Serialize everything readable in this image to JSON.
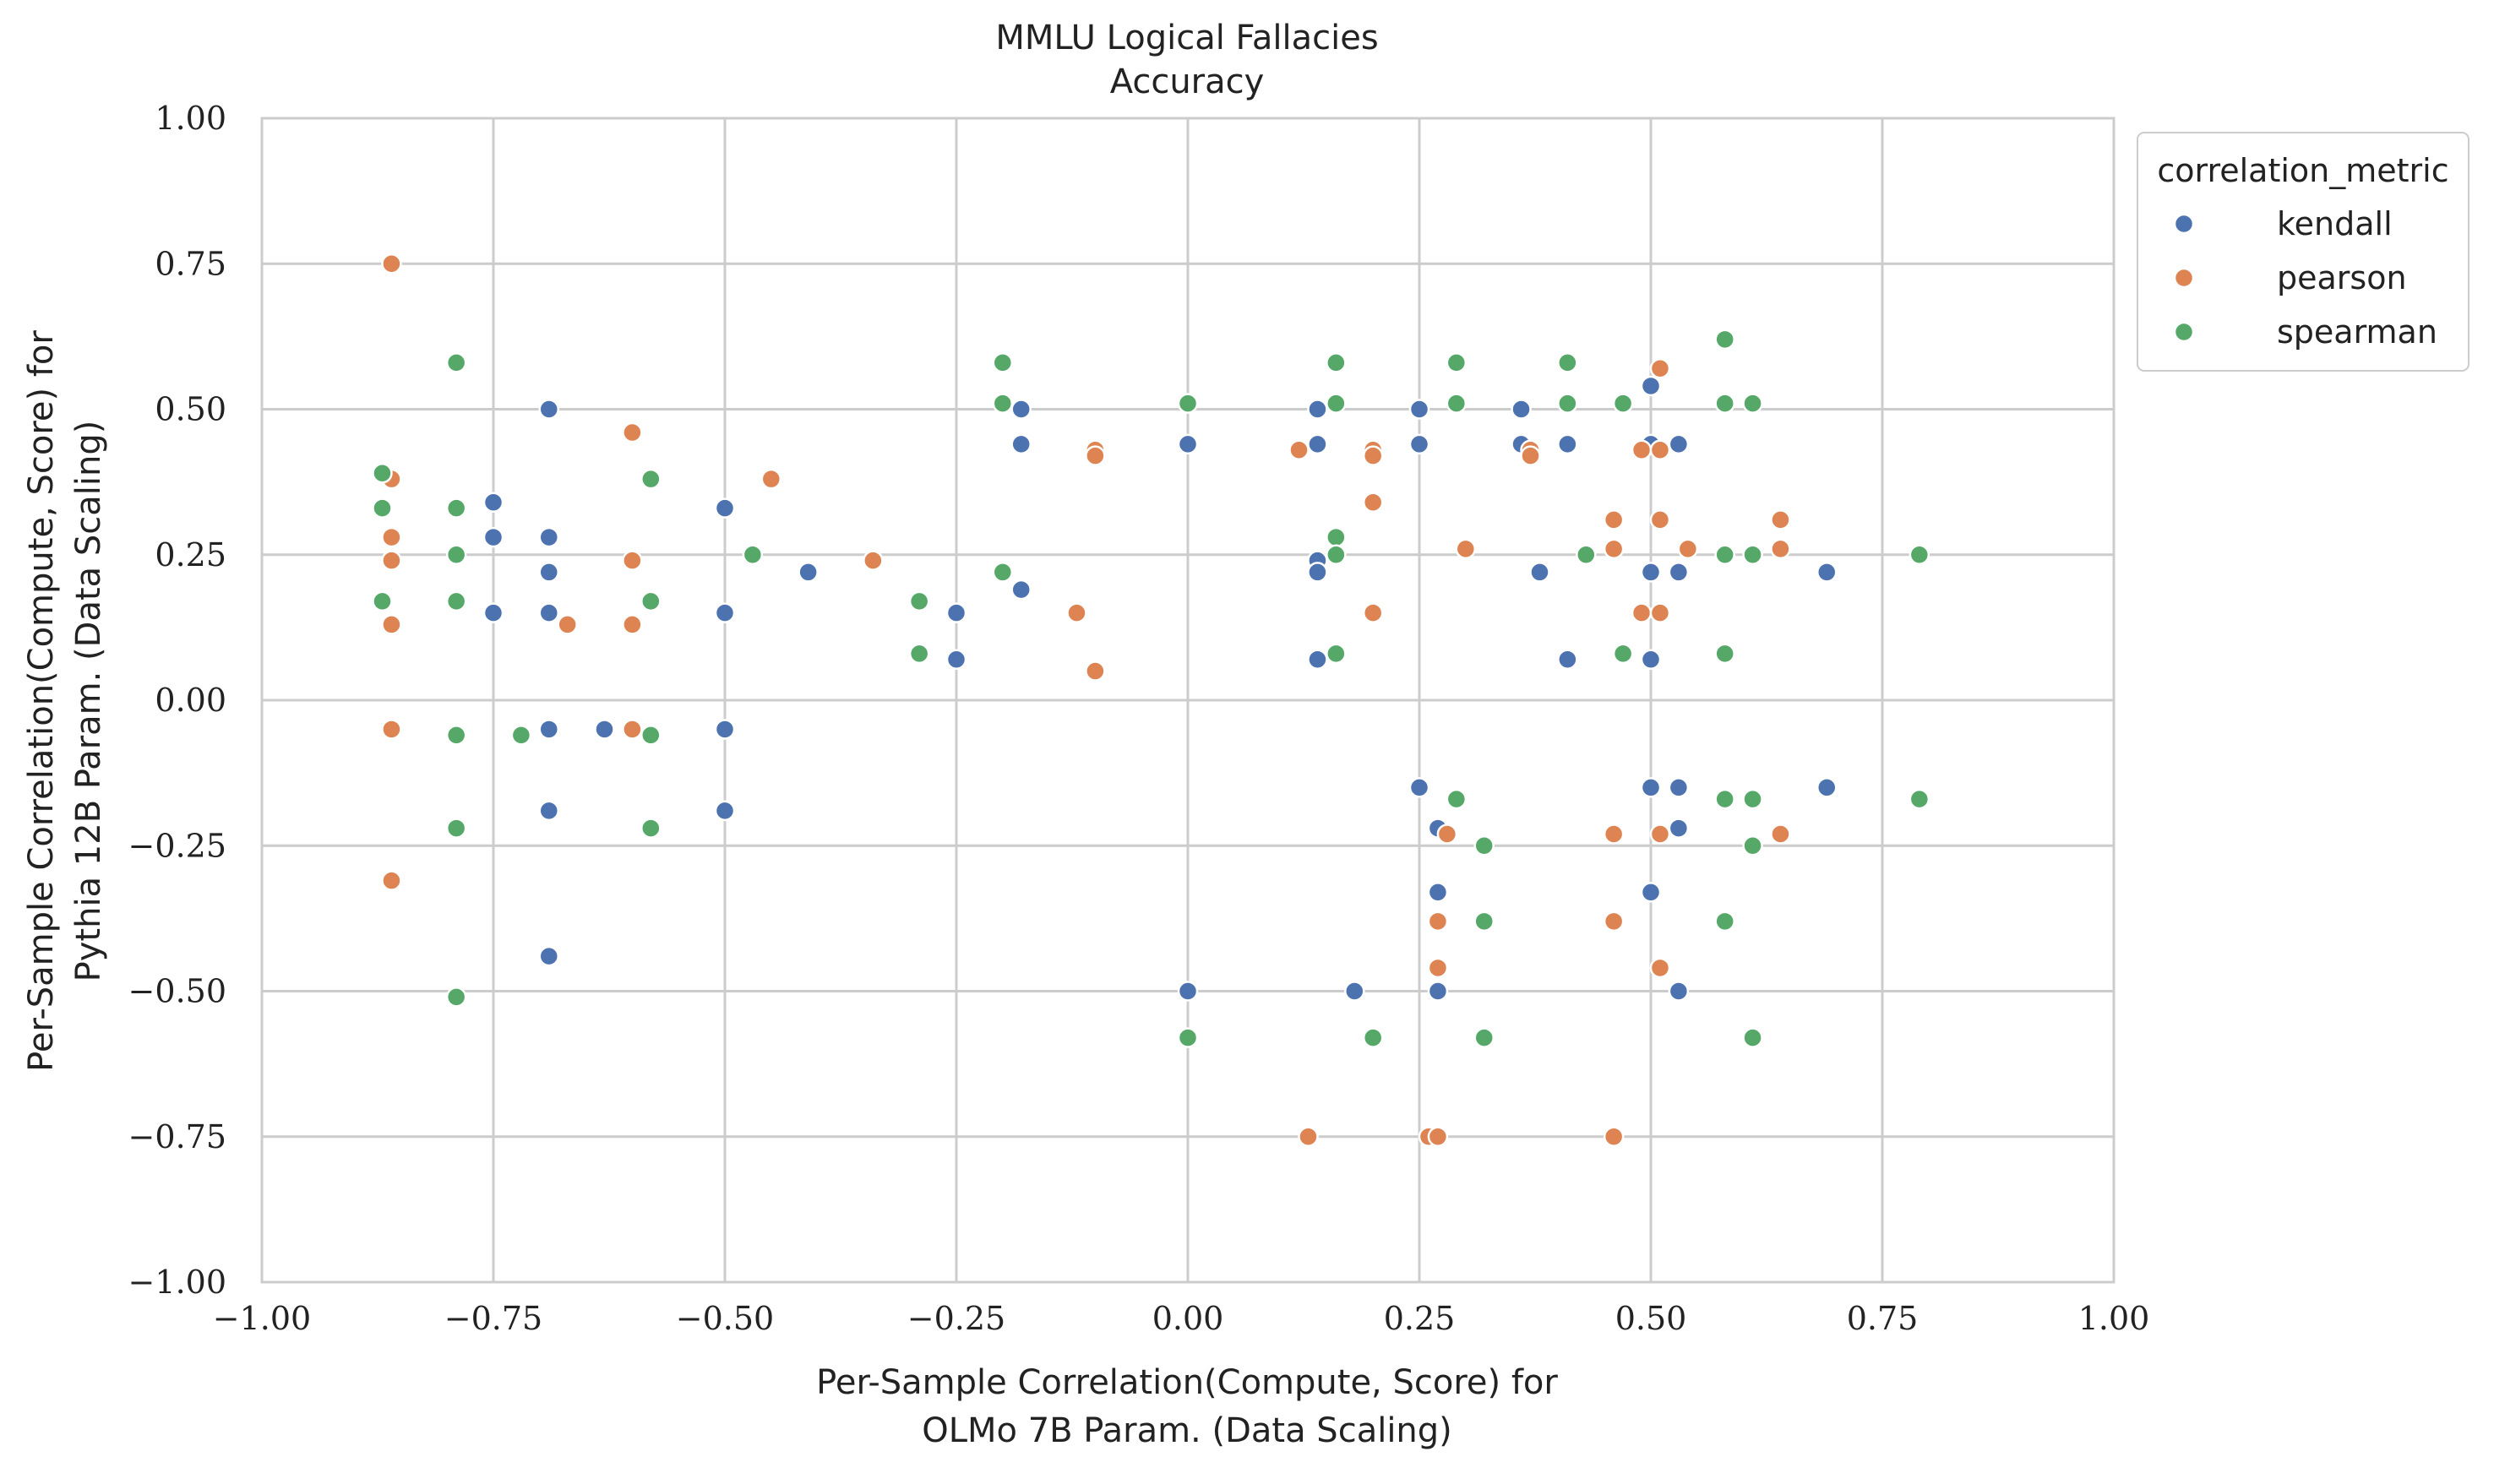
{
  "chart_data": {
    "type": "scatter",
    "title": "MMLU Logical Fallacies",
    "subtitle": "Accuracy",
    "xlabel_line1": "Per-Sample Correlation(Compute, Score) for",
    "xlabel_line2": "OLMo 7B Param. (Data Scaling)",
    "ylabel_line1": "Per-Sample Correlation(Compute, Score) for",
    "ylabel_line2": "Pythia 12B Param. (Data Scaling)",
    "xlim": [
      -1.0,
      1.0
    ],
    "ylim": [
      -1.0,
      1.0
    ],
    "x_ticks": [
      -1.0,
      -0.75,
      -0.5,
      -0.25,
      0.0,
      0.25,
      0.5,
      0.75,
      1.0
    ],
    "y_ticks": [
      -1.0,
      -0.75,
      -0.5,
      -0.25,
      0.0,
      0.25,
      0.5,
      0.75,
      1.0
    ],
    "x_tick_labels": [
      "−1.00",
      "−0.75",
      "−0.50",
      "−0.25",
      "0.00",
      "0.25",
      "0.50",
      "0.75",
      "1.00"
    ],
    "y_tick_labels": [
      "−1.00",
      "−0.75",
      "−0.50",
      "−0.25",
      "0.00",
      "0.25",
      "0.50",
      "0.75",
      "1.00"
    ],
    "grid": true,
    "legend": {
      "title": "correlation_metric",
      "placement": "outside-top-right"
    },
    "series": [
      {
        "name": "kendall",
        "color": "#4c72b0",
        "points": [
          [
            -0.69,
            0.5
          ],
          [
            -0.75,
            0.34
          ],
          [
            -0.75,
            0.28
          ],
          [
            -0.75,
            0.15
          ],
          [
            -0.69,
            0.28
          ],
          [
            -0.69,
            0.22
          ],
          [
            -0.69,
            0.15
          ],
          [
            -0.69,
            -0.05
          ],
          [
            -0.69,
            -0.19
          ],
          [
            -0.69,
            -0.44
          ],
          [
            -0.63,
            -0.05
          ],
          [
            -0.5,
            0.33
          ],
          [
            -0.5,
            0.15
          ],
          [
            -0.5,
            -0.05
          ],
          [
            -0.5,
            -0.19
          ],
          [
            -0.41,
            0.22
          ],
          [
            -0.25,
            0.15
          ],
          [
            -0.25,
            0.07
          ],
          [
            -0.18,
            0.5
          ],
          [
            -0.18,
            0.44
          ],
          [
            -0.18,
            0.19
          ],
          [
            0.0,
            0.44
          ],
          [
            0.0,
            -0.5
          ],
          [
            0.14,
            0.5
          ],
          [
            0.14,
            0.44
          ],
          [
            0.14,
            0.24
          ],
          [
            0.14,
            0.22
          ],
          [
            0.14,
            0.07
          ],
          [
            0.18,
            -0.5
          ],
          [
            0.25,
            0.5
          ],
          [
            0.25,
            0.44
          ],
          [
            0.25,
            -0.15
          ],
          [
            0.27,
            -0.22
          ],
          [
            0.27,
            -0.33
          ],
          [
            0.27,
            -0.5
          ],
          [
            0.36,
            0.5
          ],
          [
            0.36,
            0.44
          ],
          [
            0.38,
            0.22
          ],
          [
            0.41,
            0.44
          ],
          [
            0.41,
            0.07
          ],
          [
            0.5,
            0.54
          ],
          [
            0.5,
            0.44
          ],
          [
            0.5,
            0.22
          ],
          [
            0.5,
            0.07
          ],
          [
            0.5,
            -0.15
          ],
          [
            0.5,
            -0.33
          ],
          [
            0.53,
            0.44
          ],
          [
            0.53,
            0.22
          ],
          [
            0.53,
            -0.15
          ],
          [
            0.53,
            -0.22
          ],
          [
            0.53,
            -0.5
          ],
          [
            0.69,
            0.22
          ],
          [
            0.69,
            -0.15
          ]
        ]
      },
      {
        "name": "pearson",
        "color": "#dd8452",
        "points": [
          [
            -0.86,
            0.75
          ],
          [
            -0.86,
            0.38
          ],
          [
            -0.86,
            0.28
          ],
          [
            -0.86,
            0.24
          ],
          [
            -0.86,
            0.13
          ],
          [
            -0.86,
            -0.05
          ],
          [
            -0.86,
            -0.31
          ],
          [
            -0.67,
            0.13
          ],
          [
            -0.6,
            0.46
          ],
          [
            -0.6,
            0.24
          ],
          [
            -0.6,
            0.13
          ],
          [
            -0.6,
            -0.05
          ],
          [
            -0.45,
            0.38
          ],
          [
            -0.34,
            0.24
          ],
          [
            -0.12,
            0.15
          ],
          [
            -0.1,
            0.43
          ],
          [
            -0.1,
            0.42
          ],
          [
            -0.1,
            0.05
          ],
          [
            0.12,
            0.43
          ],
          [
            0.2,
            0.43
          ],
          [
            0.2,
            0.42
          ],
          [
            0.2,
            0.34
          ],
          [
            0.2,
            0.15
          ],
          [
            0.13,
            -0.75
          ],
          [
            0.26,
            -0.75
          ],
          [
            0.27,
            -0.75
          ],
          [
            0.27,
            -0.38
          ],
          [
            0.27,
            -0.46
          ],
          [
            0.28,
            -0.23
          ],
          [
            0.3,
            0.26
          ],
          [
            0.37,
            0.43
          ],
          [
            0.37,
            0.42
          ],
          [
            0.46,
            0.31
          ],
          [
            0.46,
            0.26
          ],
          [
            0.46,
            -0.23
          ],
          [
            0.46,
            -0.38
          ],
          [
            0.46,
            -0.75
          ],
          [
            0.49,
            0.43
          ],
          [
            0.49,
            0.15
          ],
          [
            0.51,
            0.57
          ],
          [
            0.51,
            0.43
          ],
          [
            0.51,
            0.31
          ],
          [
            0.51,
            0.15
          ],
          [
            0.51,
            -0.23
          ],
          [
            0.51,
            -0.46
          ],
          [
            0.54,
            0.26
          ],
          [
            0.64,
            0.31
          ],
          [
            0.64,
            0.26
          ],
          [
            0.64,
            -0.23
          ]
        ]
      },
      {
        "name": "spearman",
        "color": "#55a868",
        "points": [
          [
            -0.87,
            0.39
          ],
          [
            -0.87,
            0.33
          ],
          [
            -0.87,
            0.17
          ],
          [
            -0.79,
            0.58
          ],
          [
            -0.79,
            0.33
          ],
          [
            -0.79,
            0.25
          ],
          [
            -0.79,
            0.17
          ],
          [
            -0.79,
            -0.06
          ],
          [
            -0.79,
            -0.22
          ],
          [
            -0.79,
            -0.51
          ],
          [
            -0.72,
            -0.06
          ],
          [
            -0.58,
            0.38
          ],
          [
            -0.58,
            0.17
          ],
          [
            -0.58,
            -0.06
          ],
          [
            -0.58,
            -0.22
          ],
          [
            -0.47,
            0.25
          ],
          [
            -0.29,
            0.17
          ],
          [
            -0.29,
            0.08
          ],
          [
            -0.2,
            0.58
          ],
          [
            -0.2,
            0.51
          ],
          [
            -0.2,
            0.22
          ],
          [
            0.0,
            0.51
          ],
          [
            0.0,
            -0.58
          ],
          [
            0.16,
            0.58
          ],
          [
            0.16,
            0.51
          ],
          [
            0.16,
            0.28
          ],
          [
            0.16,
            0.25
          ],
          [
            0.16,
            0.08
          ],
          [
            0.2,
            -0.58
          ],
          [
            0.29,
            0.58
          ],
          [
            0.29,
            0.51
          ],
          [
            0.29,
            -0.17
          ],
          [
            0.32,
            -0.25
          ],
          [
            0.32,
            -0.38
          ],
          [
            0.32,
            -0.58
          ],
          [
            0.41,
            0.58
          ],
          [
            0.41,
            0.51
          ],
          [
            0.43,
            0.25
          ],
          [
            0.47,
            0.51
          ],
          [
            0.47,
            0.08
          ],
          [
            0.58,
            0.62
          ],
          [
            0.58,
            0.51
          ],
          [
            0.58,
            0.25
          ],
          [
            0.58,
            0.08
          ],
          [
            0.58,
            -0.17
          ],
          [
            0.58,
            -0.38
          ],
          [
            0.61,
            0.51
          ],
          [
            0.61,
            0.25
          ],
          [
            0.61,
            -0.17
          ],
          [
            0.61,
            -0.25
          ],
          [
            0.61,
            -0.58
          ],
          [
            0.79,
            0.25
          ],
          [
            0.79,
            -0.17
          ]
        ]
      }
    ]
  }
}
